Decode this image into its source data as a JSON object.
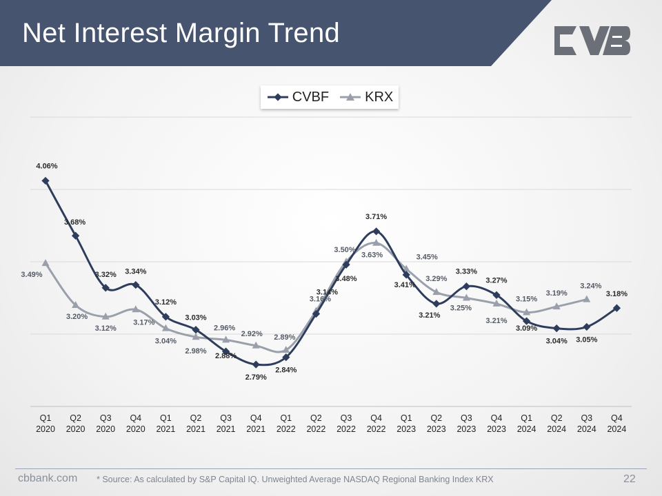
{
  "header": {
    "title": "Net Interest Margin Trend",
    "logo_icon": "cvb-logo-icon"
  },
  "colors": {
    "header_bg": "#465470",
    "cvbf": "#2f3d5c",
    "krx": "#9aa0ab",
    "grid": "#d9d9d9"
  },
  "chart_data": {
    "type": "line",
    "categories": [
      "Q1\n2020",
      "Q2\n2020",
      "Q3\n2020",
      "Q4\n2020",
      "Q1\n2021",
      "Q2\n2021",
      "Q3\n2021",
      "Q4\n2021",
      "Q1\n2022",
      "Q2\n2022",
      "Q3\n2022",
      "Q4\n2022",
      "Q1\n2023",
      "Q2\n2023",
      "Q3\n2023",
      "Q4\n2023",
      "Q1\n2024",
      "Q2\n2024",
      "Q3\n2024",
      "Q4\n2024"
    ],
    "series": [
      {
        "name": "CVBF",
        "marker": "diamond",
        "values": [
          4.06,
          3.68,
          3.32,
          3.34,
          3.12,
          3.03,
          2.88,
          2.79,
          2.84,
          3.14,
          3.48,
          3.71,
          3.41,
          3.21,
          3.33,
          3.27,
          3.09,
          3.04,
          3.05,
          3.18
        ],
        "labels": [
          "4.06%",
          "3.68%",
          "3.32%",
          "3.34%",
          "3.12%",
          "3.03%",
          "2.88%",
          "2.79%",
          "2.84%",
          "3.14%",
          "3.48%",
          "3.71%",
          "3.41%",
          "3.21%",
          "3.33%",
          "3.27%",
          "3.09%",
          "3.04%",
          "3.05%",
          "3.18%"
        ]
      },
      {
        "name": "KRX",
        "marker": "triangle",
        "values": [
          3.49,
          3.2,
          3.12,
          3.17,
          3.04,
          2.98,
          2.96,
          2.92,
          2.89,
          3.16,
          3.5,
          3.63,
          3.45,
          3.29,
          3.25,
          3.21,
          3.15,
          3.19,
          3.24,
          null
        ],
        "labels": [
          "3.49%",
          "3.20%",
          "3.12%",
          "3.17%",
          "3.04%",
          "2.98%",
          "2.96%",
          "2.92%",
          "2.89%",
          "3.16%",
          "3.50%",
          "3.63%",
          "3.45%",
          "3.29%",
          "3.25%",
          "3.21%",
          "3.15%",
          "3.19%",
          "3.24%",
          ""
        ]
      }
    ],
    "ylim": [
      2.5,
      4.5
    ],
    "grid": true,
    "legend_position": "top"
  },
  "footer": {
    "site": "cbbank.com",
    "source": "* Source: As calculated by S&P Capital IQ. Unweighted Average NASDAQ Regional Banking Index KRX",
    "page": "22"
  }
}
